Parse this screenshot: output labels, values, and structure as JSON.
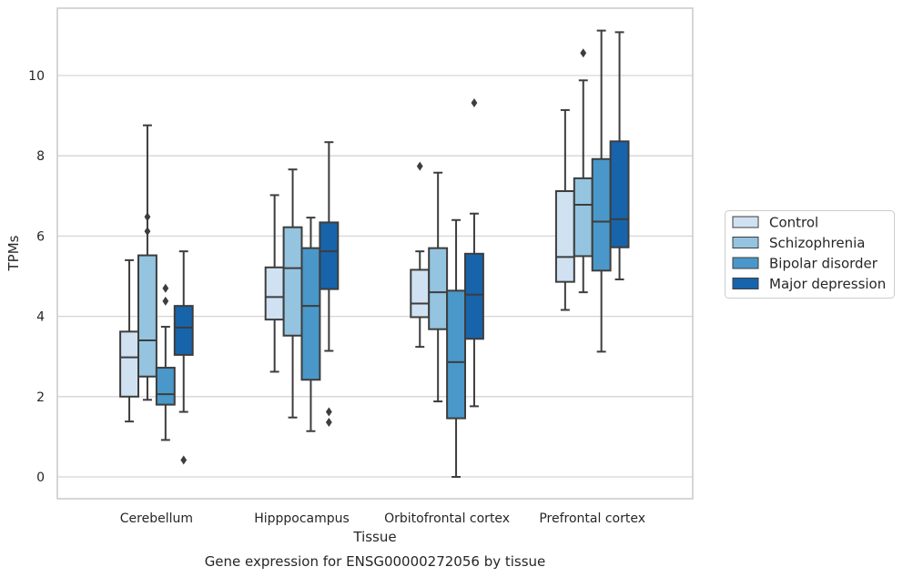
{
  "chart_data": {
    "type": "boxplot",
    "caption": "Gene expression for ENSG00000272056 by tissue",
    "xlabel": "Tissue",
    "ylabel": "TPMs",
    "ylim": [
      -0.55,
      11.7
    ],
    "yticks": [
      0,
      2,
      4,
      6,
      8,
      10
    ],
    "grid": "horizontal",
    "legend_position": "right",
    "categories": [
      "Cerebellum",
      "Hipppocampus",
      "Orbitofrontal cortex",
      "Prefrontal cortex"
    ],
    "series": [
      {
        "name": "Control",
        "color": "#d0e1f2",
        "boxes": [
          {
            "whislo": 1.38,
            "q1": 2.0,
            "med": 2.98,
            "q3": 3.62,
            "whishi": 5.4,
            "fliers": []
          },
          {
            "whislo": 2.62,
            "q1": 3.92,
            "med": 4.48,
            "q3": 5.22,
            "whishi": 7.02,
            "fliers": []
          },
          {
            "whislo": 3.24,
            "q1": 3.98,
            "med": 4.32,
            "q3": 5.16,
            "whishi": 5.62,
            "fliers": [
              7.74
            ]
          },
          {
            "whislo": 4.16,
            "q1": 4.86,
            "med": 5.48,
            "q3": 7.12,
            "whishi": 9.14,
            "fliers": []
          }
        ]
      },
      {
        "name": "Schizophrenia",
        "color": "#94c4df",
        "boxes": [
          {
            "whislo": 1.92,
            "q1": 2.5,
            "med": 3.4,
            "q3": 5.52,
            "whishi": 8.76,
            "fliers": [
              6.12,
              6.48
            ]
          },
          {
            "whislo": 1.48,
            "q1": 3.52,
            "med": 5.2,
            "q3": 6.22,
            "whishi": 7.66,
            "fliers": []
          },
          {
            "whislo": 1.88,
            "q1": 3.68,
            "med": 4.6,
            "q3": 5.7,
            "whishi": 7.58,
            "fliers": []
          },
          {
            "whislo": 4.6,
            "q1": 5.5,
            "med": 6.78,
            "q3": 7.44,
            "whishi": 9.88,
            "fliers": [
              10.56
            ]
          }
        ]
      },
      {
        "name": "Bipolar disorder",
        "color": "#4a98c9",
        "boxes": [
          {
            "whislo": 0.92,
            "q1": 1.8,
            "med": 2.06,
            "q3": 2.72,
            "whishi": 3.74,
            "fliers": [
              4.38,
              4.7
            ]
          },
          {
            "whislo": 1.14,
            "q1": 2.42,
            "med": 4.26,
            "q3": 5.7,
            "whishi": 6.46,
            "fliers": []
          },
          {
            "whislo": 0.0,
            "q1": 1.46,
            "med": 2.86,
            "q3": 4.64,
            "whishi": 6.4,
            "fliers": []
          },
          {
            "whislo": 3.12,
            "q1": 5.14,
            "med": 6.36,
            "q3": 7.92,
            "whishi": 11.12,
            "fliers": []
          }
        ]
      },
      {
        "name": "Major depression",
        "color": "#1764ab",
        "boxes": [
          {
            "whislo": 1.62,
            "q1": 3.04,
            "med": 3.72,
            "q3": 4.26,
            "whishi": 5.62,
            "fliers": [
              0.42
            ]
          },
          {
            "whislo": 3.14,
            "q1": 4.68,
            "med": 5.62,
            "q3": 6.34,
            "whishi": 8.34,
            "fliers": [
              1.36,
              1.62
            ]
          },
          {
            "whislo": 1.76,
            "q1": 3.44,
            "med": 4.54,
            "q3": 5.56,
            "whishi": 6.56,
            "fliers": [
              9.32
            ]
          },
          {
            "whislo": 4.92,
            "q1": 5.72,
            "med": 6.42,
            "q3": 8.36,
            "whishi": 11.08,
            "fliers": []
          }
        ]
      }
    ]
  }
}
